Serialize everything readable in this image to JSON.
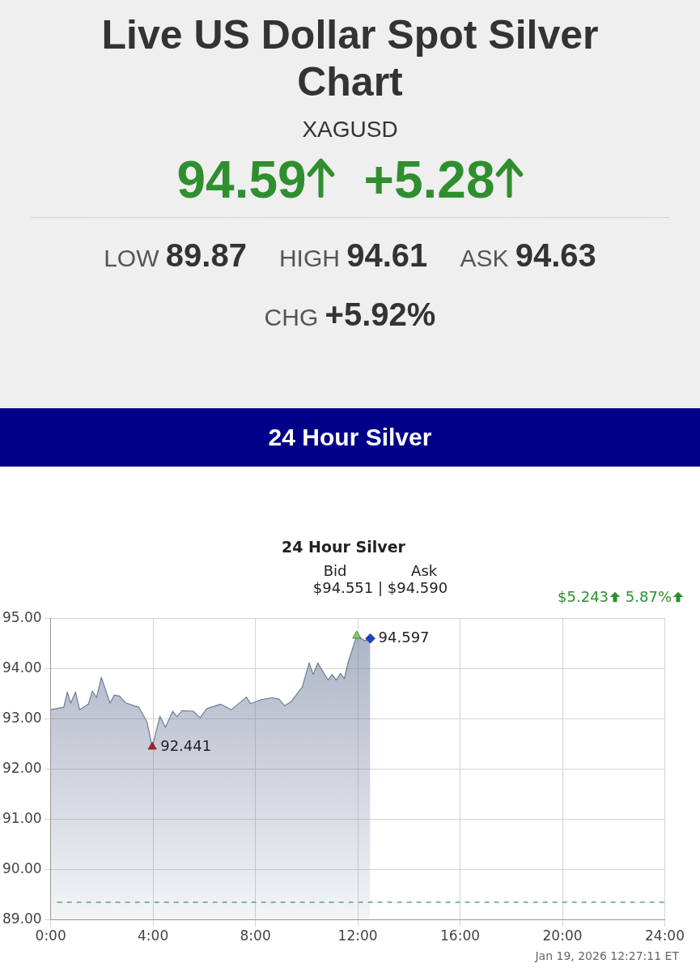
{
  "chart_data": [
    {
      "type": "other",
      "title": "Live US Dollar Spot Silver Chart",
      "subtitle": "XAGUSD",
      "annotations": [
        "94.59",
        "+5.28",
        "LOW 89.87",
        "HIGH 94.61",
        "ASK 94.63",
        "CHG +5.92%",
        "24 Hour Silver"
      ]
    },
    {
      "type": "area",
      "title": "24 Hour Silver",
      "annotations": [
        "Bid",
        "Ask",
        "$94.551 | $94.590",
        "$5.243",
        "5.87%",
        "Jan 19, 2026  12:27:11 ET",
        {
          "text": "92.441",
          "x": 3.97,
          "y": 92.441
        },
        {
          "text": "94.597",
          "x": 12.49,
          "y": 94.597
        }
      ],
      "series": [
        {
          "color": "#6f7c99",
          "x": [
            0,
            0.51,
            0.65,
            0.78,
            0.97,
            1.13,
            1.47,
            1.63,
            1.79,
            1.98,
            2.32,
            2.48,
            2.69,
            2.91,
            3.44,
            3.76,
            3.97,
            4.27,
            4.48,
            4.77,
            4.93,
            5.14,
            5.57,
            5.84,
            6.1,
            6.64,
            7.06,
            7.65,
            7.81,
            8.23,
            8.66,
            8.92,
            9.14,
            9.4,
            9.83,
            10.1,
            10.26,
            10.44,
            10.84,
            11,
            11.16,
            11.32,
            11.48,
            11.62,
            11.96,
            12.28,
            12.49
          ],
          "values": [
            93.18,
            93.23,
            93.53,
            93.31,
            93.53,
            93.18,
            93.29,
            93.55,
            93.42,
            93.82,
            93.31,
            93.47,
            93.45,
            93.32,
            93.23,
            92.94,
            92.441,
            93.05,
            92.83,
            93.15,
            93.04,
            93.16,
            93.15,
            93.02,
            93.2,
            93.29,
            93.18,
            93.43,
            93.3,
            93.38,
            93.42,
            93.39,
            93.26,
            93.34,
            93.63,
            94.11,
            93.88,
            94.11,
            93.77,
            93.88,
            93.77,
            93.9,
            93.8,
            94.12,
            94.65,
            94.55,
            94.597
          ]
        },
        {
          "type": "scatter",
          "marker": "triangle",
          "color": "#7fd35a",
          "x": [
            11.96
          ],
          "values": [
            94.65
          ]
        },
        {
          "type": "scatter",
          "marker": "triangle",
          "color": "#c0141b",
          "x": [
            3.97
          ],
          "values": [
            92.441
          ]
        },
        {
          "type": "scatter",
          "marker": "diamond",
          "color": "#1f3fd1",
          "x": [
            12.49
          ],
          "values": [
            94.597
          ]
        }
      ],
      "xlim": [
        0,
        24
      ],
      "xticks": [
        {
          "value": 0,
          "label": "0:00"
        },
        {
          "value": 4,
          "label": "4:00"
        },
        {
          "value": 8,
          "label": "8:00"
        },
        {
          "value": 12,
          "label": "12:00"
        },
        {
          "value": 16,
          "label": "16:00"
        },
        {
          "value": 20,
          "label": "20:00"
        },
        {
          "value": 24,
          "label": "24:00"
        }
      ],
      "ylim": [
        89,
        95
      ],
      "yticks": [
        {
          "value": 89,
          "label": "89.00"
        },
        {
          "value": 90,
          "label": "90.00"
        },
        {
          "value": 91,
          "label": "91.00"
        },
        {
          "value": 92,
          "label": "92.00"
        },
        {
          "value": 93,
          "label": "93.00"
        },
        {
          "value": 94,
          "label": "94.00"
        },
        {
          "value": 95,
          "label": "95.00"
        }
      ],
      "ref_lines": [
        {
          "axis": "y",
          "value": 89.35,
          "color": "#2e9e4a",
          "line_style": "dashed"
        }
      ],
      "grid": true
    }
  ]
}
